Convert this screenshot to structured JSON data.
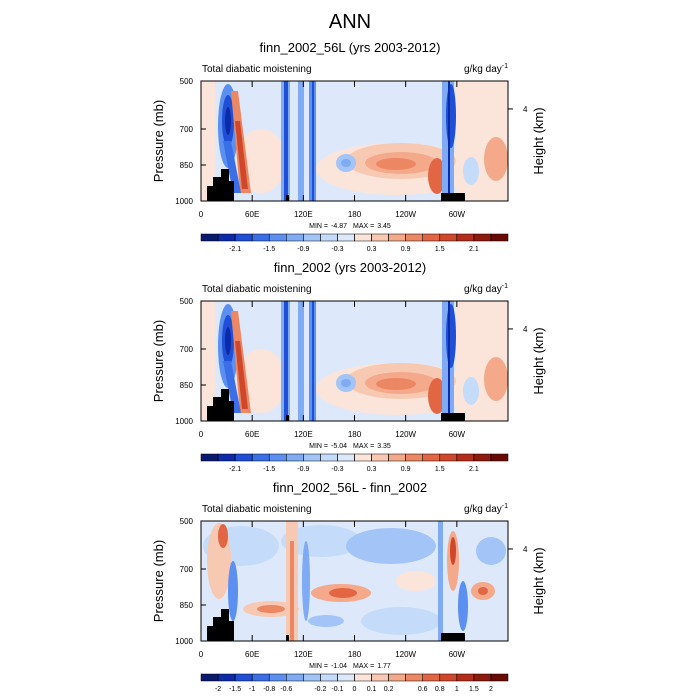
{
  "title": "ANN",
  "chart_data": [
    {
      "type": "contour",
      "title": "finn_2002_56L (yrs 2003-2012)",
      "left_label": "Total diabatic moistening",
      "units": "g/kg day",
      "units_sup": "-1",
      "ylabel": "Pressure (mb)",
      "y2label": "Height (km)",
      "ylim": [
        500,
        1000
      ],
      "yticks": [
        500,
        700,
        850,
        1000
      ],
      "y2ticks": [
        4
      ],
      "xlim": [
        0,
        360
      ],
      "xticks": [
        0,
        {
          "value": 60,
          "label": "60E"
        },
        {
          "value": 120,
          "label": "120E"
        },
        180,
        {
          "value": 240,
          "label": "120W"
        },
        {
          "value": 300,
          "label": "60W"
        }
      ],
      "min_label": "MIN =",
      "min": -4.87,
      "max_label": "MAX =",
      "max": 3.45,
      "levels": [
        -2.4,
        -2.1,
        -1.8,
        -1.5,
        -1.2,
        -0.9,
        -0.6,
        -0.3,
        0,
        0.3,
        0.6,
        0.9,
        1.2,
        1.5,
        1.8,
        2.1,
        2.4
      ],
      "colorbar_labels": [
        -2.1,
        -1.5,
        -0.9,
        -0.3,
        0.3,
        0.9,
        1.5,
        2.1
      ],
      "colors": [
        "#0a1a6e",
        "#0d2aa8",
        "#1f4fd6",
        "#3b6fe8",
        "#5b8ff0",
        "#7faaf4",
        "#a3c4f7",
        "#c4dbfa",
        "#dde9fb",
        "#fbe4d9",
        "#f8c9b2",
        "#f3a98a",
        "#ec8764",
        "#e26644",
        "#d0482b",
        "#b52d1a",
        "#8e190d",
        "#6a0a05"
      ]
    },
    {
      "type": "contour",
      "title": "finn_2002 (yrs 2003-2012)",
      "left_label": "Total diabatic moistening",
      "units": "g/kg day",
      "units_sup": "-1",
      "ylabel": "Pressure (mb)",
      "y2label": "Height (km)",
      "ylim": [
        500,
        1000
      ],
      "yticks": [
        500,
        700,
        850,
        1000
      ],
      "y2ticks": [
        4
      ],
      "xlim": [
        0,
        360
      ],
      "xticks": [
        0,
        {
          "value": 60,
          "label": "60E"
        },
        {
          "value": 120,
          "label": "120E"
        },
        180,
        {
          "value": 240,
          "label": "120W"
        },
        {
          "value": 300,
          "label": "60W"
        }
      ],
      "min_label": "MIN =",
      "min": -5.04,
      "max_label": "MAX =",
      "max": 3.35,
      "levels": [
        -2.4,
        -2.1,
        -1.8,
        -1.5,
        -1.2,
        -0.9,
        -0.6,
        -0.3,
        0,
        0.3,
        0.6,
        0.9,
        1.2,
        1.5,
        1.8,
        2.1,
        2.4
      ],
      "colorbar_labels": [
        -2.1,
        -1.5,
        -0.9,
        -0.3,
        0.3,
        0.9,
        1.5,
        2.1
      ],
      "colors": [
        "#0a1a6e",
        "#0d2aa8",
        "#1f4fd6",
        "#3b6fe8",
        "#5b8ff0",
        "#7faaf4",
        "#a3c4f7",
        "#c4dbfa",
        "#dde9fb",
        "#fbe4d9",
        "#f8c9b2",
        "#f3a98a",
        "#ec8764",
        "#e26644",
        "#d0482b",
        "#b52d1a",
        "#8e190d",
        "#6a0a05"
      ]
    },
    {
      "type": "contour",
      "title": "finn_2002_56L - finn_2002",
      "left_label": "Total diabatic moistening",
      "units": "g/kg day",
      "units_sup": "-1",
      "ylabel": "Pressure (mb)",
      "y2label": "Height (km)",
      "ylim": [
        500,
        1000
      ],
      "yticks": [
        500,
        700,
        850,
        1000
      ],
      "y2ticks": [
        4
      ],
      "xlim": [
        0,
        360
      ],
      "xticks": [
        0,
        {
          "value": 60,
          "label": "60E"
        },
        {
          "value": 120,
          "label": "120E"
        },
        180,
        {
          "value": 240,
          "label": "120W"
        },
        {
          "value": 300,
          "label": "60W"
        }
      ],
      "min_label": "MIN =",
      "min": -1.04,
      "max_label": "MAX =",
      "max": 1.77,
      "levels": [
        -2,
        -1.5,
        -1,
        -0.8,
        -0.6,
        -0.4,
        -0.2,
        -0.1,
        0,
        0.1,
        0.2,
        0.4,
        0.6,
        0.8,
        1,
        1.5,
        2
      ],
      "colorbar_labels": [
        -2,
        -1.5,
        -1,
        -0.8,
        -0.6,
        -0.2,
        -0.1,
        0,
        0.1,
        0.2,
        0.6,
        0.8,
        1,
        1.5,
        2
      ],
      "colors": [
        "#0a1a6e",
        "#0d2aa8",
        "#1f4fd6",
        "#3b6fe8",
        "#5b8ff0",
        "#7faaf4",
        "#a3c4f7",
        "#c4dbfa",
        "#dde9fb",
        "#fbe4d9",
        "#f8c9b2",
        "#f3a98a",
        "#ec8764",
        "#e26644",
        "#d0482b",
        "#b52d1a",
        "#8e190d",
        "#6a0a05"
      ]
    }
  ]
}
